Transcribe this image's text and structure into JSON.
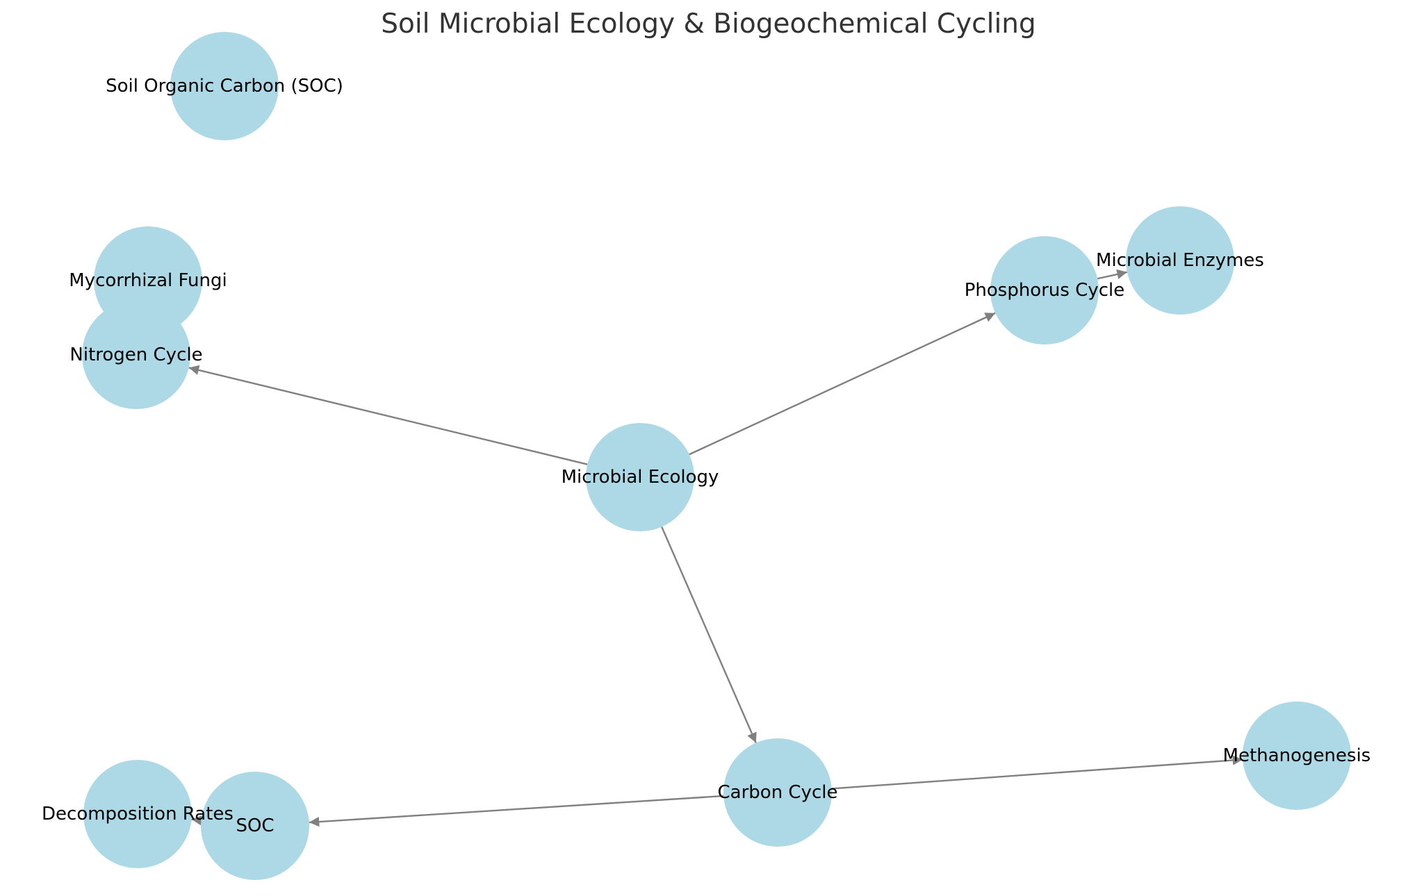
{
  "title": "Soil Microbial Ecology & Biogeochemical Cycling",
  "colors": {
    "node_fill": "#ADD8E6",
    "edge": "#808080",
    "title": "#333333",
    "label": "#000000"
  },
  "nodes": [
    {
      "id": "soc_full",
      "label": "Soil Organic Carbon (SOC)"
    },
    {
      "id": "mycorrhizal",
      "label": "Mycorrhizal Fungi"
    },
    {
      "id": "nitrogen",
      "label": "Nitrogen Cycle"
    },
    {
      "id": "microbial_ecology",
      "label": "Microbial Ecology"
    },
    {
      "id": "phosphorus",
      "label": "Phosphorus Cycle"
    },
    {
      "id": "enzymes",
      "label": "Microbial Enzymes"
    },
    {
      "id": "carbon",
      "label": "Carbon Cycle"
    },
    {
      "id": "methanogenesis",
      "label": "Methanogenesis"
    },
    {
      "id": "decomposition",
      "label": "Decomposition Rates"
    },
    {
      "id": "soc",
      "label": "SOC"
    }
  ],
  "edges": [
    {
      "from": "microbial_ecology",
      "to": "nitrogen"
    },
    {
      "from": "microbial_ecology",
      "to": "phosphorus"
    },
    {
      "from": "microbial_ecology",
      "to": "carbon"
    },
    {
      "from": "phosphorus",
      "to": "enzymes"
    },
    {
      "from": "carbon",
      "to": "soc"
    },
    {
      "from": "carbon",
      "to": "methanogenesis"
    },
    {
      "from": "soc",
      "to": "decomposition"
    }
  ]
}
